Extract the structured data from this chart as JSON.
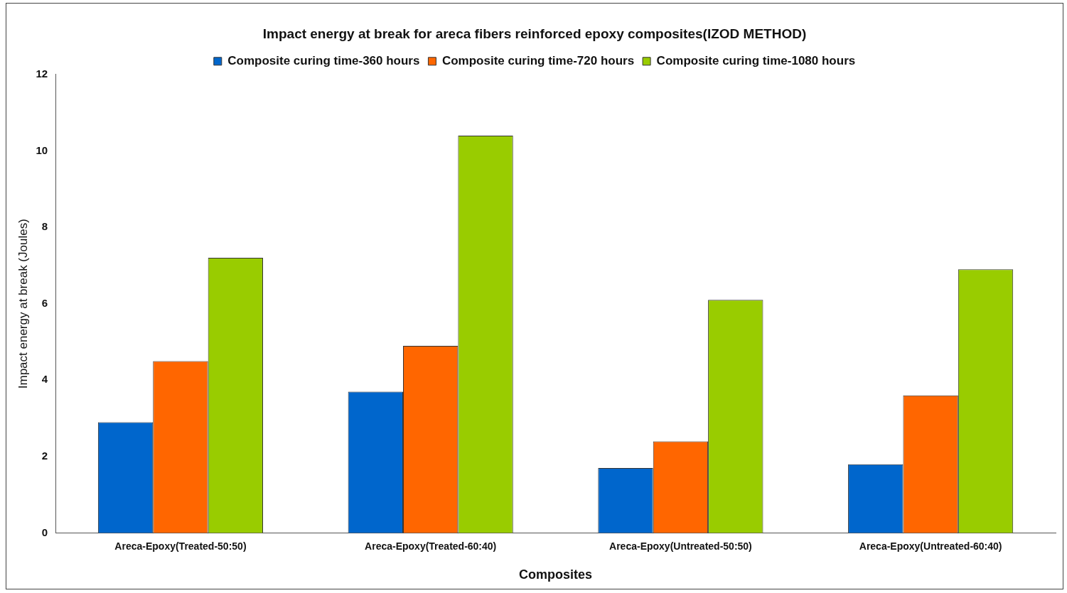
{
  "chart_data": {
    "type": "bar",
    "title": "Impact energy at break for areca fibers reinforced epoxy composites(IZOD METHOD)",
    "xlabel": "Composites",
    "ylabel": "Impact energy at break (Joules)",
    "categories": [
      "Areca-Epoxy(Treated-50:50)",
      "Areca-Epoxy(Treated-60:40)",
      "Areca-Epoxy(Untreated-50:50)",
      "Areca-Epoxy(Untreated-60:40)"
    ],
    "series": [
      {
        "name": "Composite curing time-360 hours",
        "color": "#0066cc",
        "values": [
          2.9,
          3.7,
          1.7,
          1.8
        ]
      },
      {
        "name": "Composite curing time-720 hours",
        "color": "#ff6600",
        "values": [
          4.5,
          4.9,
          2.4,
          3.6
        ]
      },
      {
        "name": "Composite curing time-1080 hours",
        "color": "#99cc00",
        "values": [
          7.2,
          10.4,
          6.1,
          6.9
        ]
      }
    ],
    "ylim": [
      0,
      12
    ],
    "yticks": [
      0,
      2,
      4,
      6,
      8,
      10,
      12
    ],
    "grid": false,
    "legend": "top"
  }
}
